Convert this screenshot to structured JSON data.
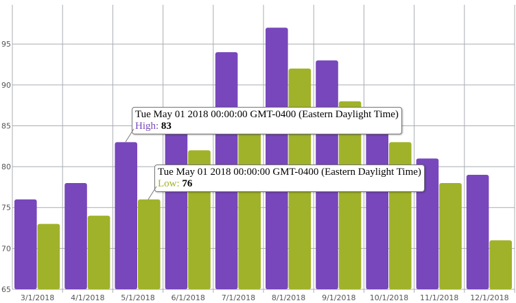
{
  "chart_data": {
    "type": "bar",
    "categories": [
      "3/1/2018",
      "4/1/2018",
      "5/1/2018",
      "6/1/2018",
      "7/1/2018",
      "8/1/2018",
      "9/1/2018",
      "10/1/2018",
      "11/1/2018",
      "12/1/2018"
    ],
    "series": [
      {
        "name": "High",
        "color": "#7747bb",
        "values": [
          76,
          78,
          83,
          87,
          94,
          97,
          93,
          86,
          81,
          79
        ]
      },
      {
        "name": "Low",
        "color": "#a0b229",
        "values": [
          73,
          74,
          76,
          82,
          85,
          92,
          88,
          83,
          78,
          71
        ]
      }
    ],
    "yticks": [
      65,
      70,
      75,
      80,
      85,
      90,
      95
    ],
    "ylim": [
      65,
      99.8
    ],
    "grid": true,
    "legend": "none"
  },
  "tooltips": [
    {
      "date": "Tue May 01 2018 00:00:00 GMT-0400 (Eastern Daylight Time)",
      "label": "High:",
      "value": "83",
      "color": "#7747bb"
    },
    {
      "date": "Tue May 01 2018 00:00:00 GMT-0400 (Eastern Daylight Time)",
      "label": "Low:",
      "value": "76",
      "color": "#a0b229"
    }
  ]
}
